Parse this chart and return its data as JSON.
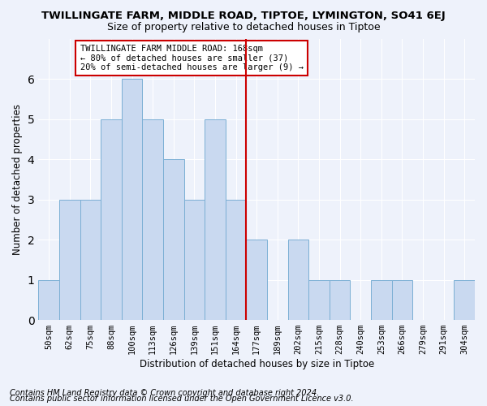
{
  "title": "TWILLINGATE FARM, MIDDLE ROAD, TIPTOE, LYMINGTON, SO41 6EJ",
  "subtitle": "Size of property relative to detached houses in Tiptoe",
  "xlabel": "Distribution of detached houses by size in Tiptoe",
  "ylabel": "Number of detached properties",
  "bar_labels": [
    "50sqm",
    "62sqm",
    "75sqm",
    "88sqm",
    "100sqm",
    "113sqm",
    "126sqm",
    "139sqm",
    "151sqm",
    "164sqm",
    "177sqm",
    "189sqm",
    "202sqm",
    "215sqm",
    "228sqm",
    "240sqm",
    "253sqm",
    "266sqm",
    "279sqm",
    "291sqm",
    "304sqm"
  ],
  "bar_values": [
    1,
    3,
    3,
    5,
    6,
    5,
    4,
    3,
    5,
    3,
    2,
    0,
    2,
    1,
    1,
    0,
    1,
    1,
    0,
    0,
    1
  ],
  "bar_color": "#c9d9f0",
  "bar_edge_color": "#7bafd4",
  "vline_x": 9.5,
  "vline_color": "#cc0000",
  "annotation_text": "TWILLINGATE FARM MIDDLE ROAD: 168sqm\n← 80% of detached houses are smaller (37)\n20% of semi-detached houses are larger (9) →",
  "annotation_box_color": "#ffffff",
  "annotation_box_edge_color": "#cc0000",
  "ylim": [
    0,
    7
  ],
  "yticks": [
    0,
    1,
    2,
    3,
    4,
    5,
    6
  ],
  "background_color": "#eef2fb",
  "grid_color": "#d0d8ee",
  "title_fontsize": 9.5,
  "subtitle_fontsize": 9,
  "axis_label_fontsize": 8.5,
  "tick_fontsize": 7.5,
  "footer_fontsize": 7,
  "footer_line1": "Contains HM Land Registry data © Crown copyright and database right 2024.",
  "footer_line2": "Contains public sector information licensed under the Open Government Licence v3.0."
}
